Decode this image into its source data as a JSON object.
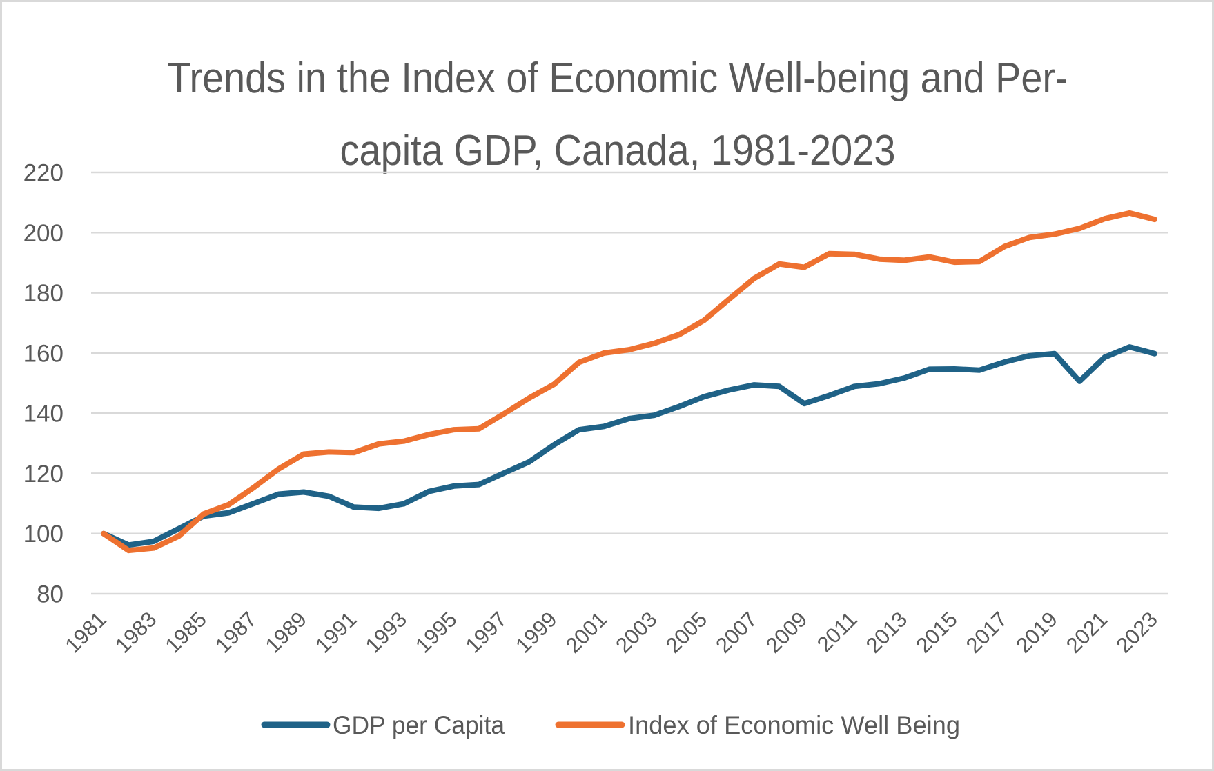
{
  "chart_data": {
    "type": "line",
    "title": "Trends in the Index of Economic Well-being and Per-capita GDP, Canada, 1981-2023",
    "title_lines": [
      "Trends in the Index of Economic Well-being and Per-",
      "capita GDP, Canada, 1981-2023"
    ],
    "xlabel": "",
    "ylabel": "",
    "ylim": [
      80,
      220
    ],
    "yticks": [
      80,
      100,
      120,
      140,
      160,
      180,
      200,
      220
    ],
    "grid": true,
    "legend_position": "bottom",
    "x": [
      1981,
      1982,
      1983,
      1984,
      1985,
      1986,
      1987,
      1988,
      1989,
      1990,
      1991,
      1992,
      1993,
      1994,
      1995,
      1996,
      1997,
      1998,
      1999,
      2000,
      2001,
      2002,
      2003,
      2004,
      2005,
      2006,
      2007,
      2008,
      2009,
      2010,
      2011,
      2012,
      2013,
      2014,
      2015,
      2016,
      2017,
      2018,
      2019,
      2020,
      2021,
      2022,
      2023
    ],
    "xtick_labels": [
      "1981",
      "1983",
      "1985",
      "1987",
      "1989",
      "1991",
      "1993",
      "1995",
      "1997",
      "1999",
      "2001",
      "2003",
      "2005",
      "2007",
      "2009",
      "2011",
      "2013",
      "2015",
      "2017",
      "2019",
      "2021",
      "2023"
    ],
    "series": [
      {
        "name": "GDP per Capita",
        "color": "#1f6287",
        "values": [
          100.0,
          96.2,
          97.4,
          101.6,
          105.8,
          106.9,
          110.0,
          113.1,
          113.8,
          112.4,
          108.8,
          108.4,
          109.9,
          114.0,
          115.8,
          116.3,
          120.1,
          123.8,
          129.5,
          134.5,
          135.6,
          138.2,
          139.3,
          142.2,
          145.5,
          147.7,
          149.4,
          148.9,
          143.2,
          145.9,
          148.9,
          149.8,
          151.7,
          154.6,
          154.7,
          154.3,
          157.0,
          159.1,
          159.8,
          150.6,
          158.6,
          162.0,
          159.8
        ]
      },
      {
        "name": "Index of Economic Well Being",
        "color": "#ee7130",
        "values": [
          100.0,
          94.4,
          95.2,
          99.1,
          106.5,
          109.6,
          115.3,
          121.5,
          126.4,
          127.1,
          126.9,
          129.8,
          130.7,
          132.9,
          134.5,
          134.8,
          139.8,
          145.0,
          149.6,
          156.9,
          160.0,
          161.1,
          163.2,
          166.1,
          170.9,
          177.9,
          184.8,
          189.6,
          188.5,
          193.0,
          192.8,
          191.2,
          190.8,
          191.9,
          190.2,
          190.4,
          195.4,
          198.4,
          199.5,
          201.4,
          204.6,
          206.5,
          204.4
        ]
      }
    ]
  }
}
